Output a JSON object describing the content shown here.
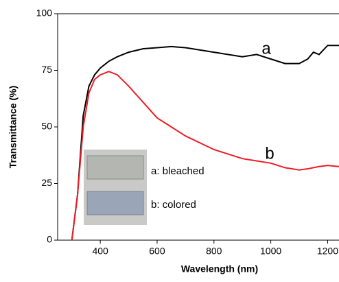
{
  "chart_data": {
    "type": "line",
    "xlabel": "Wavelength (nm)",
    "ylabel": "Transmittance (%)",
    "x": [
      300,
      320,
      340,
      360,
      380,
      400,
      430,
      460,
      500,
      550,
      600,
      650,
      700,
      800,
      900,
      950,
      1000,
      1050,
      1100,
      1130,
      1150,
      1170,
      1200,
      1240
    ],
    "series": [
      {
        "name": "a",
        "color": "#000000",
        "values": [
          0,
          20,
          55,
          68,
          73,
          76,
          79,
          81,
          83,
          84.5,
          85,
          85.5,
          85,
          83,
          81,
          82,
          80,
          78,
          78,
          80,
          83,
          82,
          86,
          86
        ]
      },
      {
        "name": "b",
        "color": "#ee1c24",
        "values": [
          0,
          20,
          50,
          65,
          71,
          73,
          74.5,
          73,
          68,
          61,
          54,
          50,
          46,
          40,
          36,
          35,
          34,
          32,
          31,
          31.5,
          32,
          32.5,
          33,
          32.5
        ]
      }
    ],
    "inset_labels": [
      "a: bleached",
      "b: colored"
    ],
    "xlim": [
      250,
      1240
    ],
    "ylim": [
      0,
      100
    ],
    "xticks": [
      400,
      600,
      800,
      1000,
      1200
    ],
    "yticks": [
      0,
      25,
      50,
      75,
      100
    ]
  }
}
